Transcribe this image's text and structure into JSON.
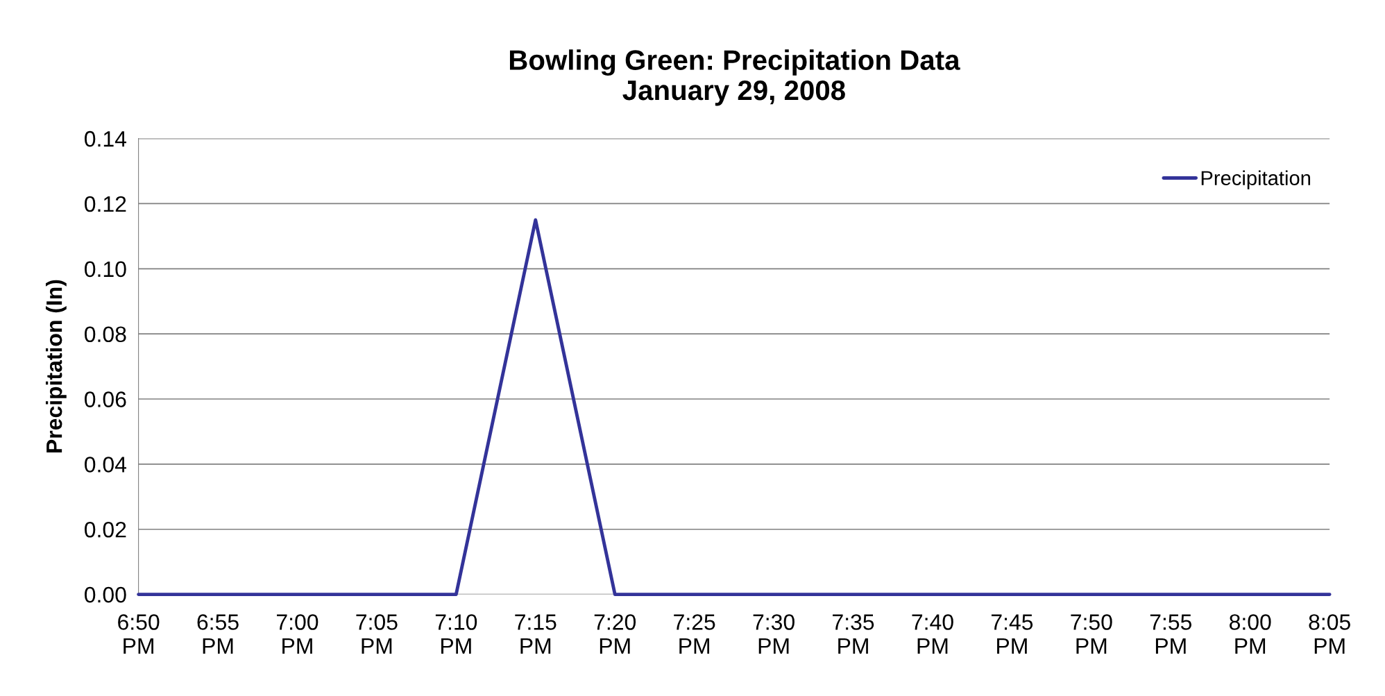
{
  "chart_data": {
    "type": "line",
    "title": "Bowling Green: Precipitation Data\nJanuary 29, 2008",
    "ylabel": "Precipitation (In)",
    "categories": [
      "6:50 PM",
      "6:55 PM",
      "7:00 PM",
      "7:05 PM",
      "7:10 PM",
      "7:15 PM",
      "7:20 PM",
      "7:25 PM",
      "7:30 PM",
      "7:35 PM",
      "7:40 PM",
      "7:45 PM",
      "7:50 PM",
      "7:55 PM",
      "8:00 PM",
      "8:05 PM"
    ],
    "series": [
      {
        "name": "Precipitation",
        "color": "#333399",
        "values": [
          0,
          0,
          0,
          0,
          0,
          0.115,
          0,
          0,
          0,
          0,
          0,
          0,
          0,
          0,
          0,
          0
        ]
      }
    ],
    "ylim": [
      0,
      0.14
    ],
    "yticks": [
      {
        "value": 0,
        "label": "0.00"
      },
      {
        "value": 0.02,
        "label": "0.02"
      },
      {
        "value": 0.04,
        "label": "0.04"
      },
      {
        "value": 0.06,
        "label": "0.06"
      },
      {
        "value": 0.08,
        "label": "0.08"
      },
      {
        "value": 0.1,
        "label": "0.10"
      },
      {
        "value": 0.12,
        "label": "0.12"
      },
      {
        "value": 0.14,
        "label": "0.14"
      }
    ],
    "grid": "y",
    "legend": "top right",
    "marker": "none",
    "line_style": "solid"
  }
}
